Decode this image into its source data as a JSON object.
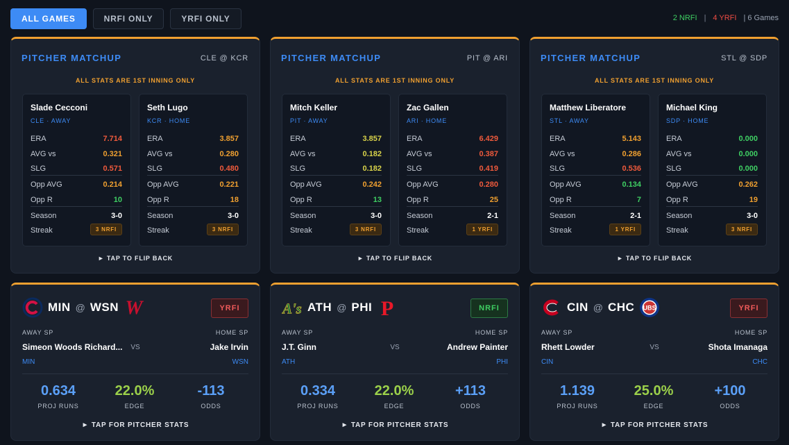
{
  "filters": [
    {
      "label": "ALL GAMES",
      "active": true
    },
    {
      "label": "NRFI ONLY",
      "active": false
    },
    {
      "label": "YRFI ONLY",
      "active": false
    }
  ],
  "summary": {
    "nrfi": "2 NRFI",
    "sep": "|",
    "yrfi": "4 YRFI",
    "games": "| 6 Games"
  },
  "matchups": [
    {
      "title": "PITCHER MATCHUP",
      "game": "CLE @ KCR",
      "note": "ALL STATS ARE 1ST INNING ONLY",
      "flip": "► TAP TO FLIP BACK",
      "pitchers": [
        {
          "name": "Slade Cecconi",
          "team": "CLE · AWAY",
          "era": "7.714",
          "avg": "0.321",
          "slg": "0.571",
          "opp_avg": "0.214",
          "opp_r": "10",
          "season": "3-0",
          "streak": "3 NRFI"
        },
        {
          "name": "Seth Lugo",
          "team": "KCR · HOME",
          "era": "3.857",
          "avg": "0.280",
          "slg": "0.480",
          "opp_avg": "0.221",
          "opp_r": "18",
          "season": "3-0",
          "streak": "3 NRFI"
        }
      ]
    },
    {
      "title": "PITCHER MATCHUP",
      "game": "PIT @ ARI",
      "note": "ALL STATS ARE 1ST INNING ONLY",
      "flip": "► TAP TO FLIP BACK",
      "pitchers": [
        {
          "name": "Mitch Keller",
          "team": "PIT · AWAY",
          "era": "3.857",
          "avg": "0.182",
          "slg": "0.182",
          "opp_avg": "0.242",
          "opp_r": "13",
          "season": "3-0",
          "streak": "3 NRFI"
        },
        {
          "name": "Zac Gallen",
          "team": "ARI · HOME",
          "era": "6.429",
          "avg": "0.387",
          "slg": "0.419",
          "opp_avg": "0.280",
          "opp_r": "25",
          "season": "2-1",
          "streak": "1 YRFI"
        }
      ]
    },
    {
      "title": "PITCHER MATCHUP",
      "game": "STL @ SDP",
      "note": "ALL STATS ARE 1ST INNING ONLY",
      "flip": "► TAP TO FLIP BACK",
      "pitchers": [
        {
          "name": "Matthew Liberatore",
          "team": "STL · AWAY",
          "era": "5.143",
          "avg": "0.286",
          "slg": "0.536",
          "opp_avg": "0.134",
          "opp_r": "7",
          "season": "2-1",
          "streak": "1 YRFI"
        },
        {
          "name": "Michael King",
          "team": "SDP · HOME",
          "era": "0.000",
          "avg": "0.000",
          "slg": "0.000",
          "opp_avg": "0.262",
          "opp_r": "19",
          "season": "3-0",
          "streak": "3 NRFI"
        }
      ]
    }
  ],
  "stat_labels": {
    "era": "ERA",
    "avg": "AVG vs",
    "slg": "SLG",
    "opp_avg": "Opp AVG",
    "opp_r": "Opp R",
    "season": "Season",
    "streak": "Streak"
  },
  "games": [
    {
      "away": "MIN",
      "at": "@",
      "home": "WSN",
      "pick": "YRFI",
      "away_sp_label": "AWAY SP",
      "home_sp_label": "HOME SP",
      "away_sp": "Simeon Woods Richard...",
      "home_sp": "Jake Irvin",
      "away_team": "MIN",
      "home_team": "WSN",
      "vs": "VS",
      "proj_runs": "0.634",
      "edge": "22.0%",
      "odds": "-113",
      "proj_label": "PROJ RUNS",
      "edge_label": "EDGE",
      "odds_label": "ODDS",
      "tap": "► TAP FOR PITCHER STATS",
      "away_logo": "twins-logo",
      "home_logo": "nationals-logo"
    },
    {
      "away": "ATH",
      "at": "@",
      "home": "PHI",
      "pick": "NRFI",
      "away_sp_label": "AWAY SP",
      "home_sp_label": "HOME SP",
      "away_sp": "J.T. Ginn",
      "home_sp": "Andrew Painter",
      "away_team": "ATH",
      "home_team": "PHI",
      "vs": "VS",
      "proj_runs": "0.334",
      "edge": "22.0%",
      "odds": "+113",
      "proj_label": "PROJ RUNS",
      "edge_label": "EDGE",
      "odds_label": "ODDS",
      "tap": "► TAP FOR PITCHER STATS",
      "away_logo": "athletics-logo",
      "home_logo": "phillies-logo"
    },
    {
      "away": "CIN",
      "at": "@",
      "home": "CHC",
      "pick": "YRFI",
      "away_sp_label": "AWAY SP",
      "home_sp_label": "HOME SP",
      "away_sp": "Rhett Lowder",
      "home_sp": "Shota Imanaga",
      "away_team": "CIN",
      "home_team": "CHC",
      "vs": "VS",
      "proj_runs": "1.139",
      "edge": "25.0%",
      "odds": "+100",
      "proj_label": "PROJ RUNS",
      "edge_label": "EDGE",
      "odds_label": "ODDS",
      "tap": "► TAP FOR PITCHER STATS",
      "away_logo": "reds-logo",
      "home_logo": "cubs-logo"
    }
  ]
}
